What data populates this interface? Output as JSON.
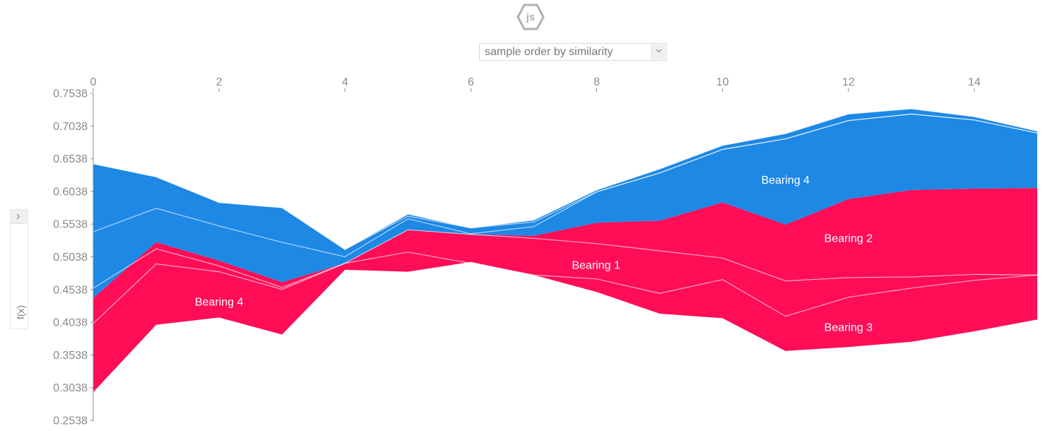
{
  "logo": {
    "text": "js"
  },
  "ordering": {
    "selected": "sample order by similarity"
  },
  "yaxis_selector": {
    "label": "f(x)"
  },
  "colors": {
    "negative": "#1e88e5",
    "positive": "#ff0d57",
    "line": "rgba(255,255,255,0.65)",
    "axis": "#8a8a8a"
  },
  "chart_data": {
    "type": "area",
    "title": "",
    "xlabel": "",
    "ylabel": "f(x)",
    "xlim": [
      0,
      15
    ],
    "ylim": [
      0.2538,
      0.7538
    ],
    "x_ticks": [
      0,
      2,
      4,
      6,
      8,
      10,
      12,
      14
    ],
    "y_ticks": [
      "0.2538",
      "0.3038",
      "0.3538",
      "0.4038",
      "0.4538",
      "0.5038",
      "0.5538",
      "0.6038",
      "0.6538",
      "0.7038",
      "0.7538"
    ],
    "x": [
      0,
      1,
      2,
      3,
      4,
      5,
      6,
      7,
      8,
      9,
      10,
      11,
      12,
      13,
      14,
      15
    ],
    "red_base": [
      0.297,
      0.4,
      0.411,
      0.385,
      0.484,
      0.481,
      0.496,
      0.476,
      0.45,
      0.417,
      0.41,
      0.36,
      0.366,
      0.374,
      0.39,
      0.408
    ],
    "red_boundaries": [
      [
        0.402,
        0.493,
        0.481,
        0.454,
        0.494,
        0.511,
        0.494,
        0.476,
        0.47,
        0.448,
        0.469,
        0.413,
        0.442,
        0.456,
        0.468,
        0.476
      ],
      [
        0.456,
        0.516,
        0.49,
        0.457,
        0.494,
        0.545,
        0.538,
        0.532,
        0.524,
        0.513,
        0.502,
        0.467,
        0.472,
        0.473,
        0.477,
        0.476
      ]
    ],
    "divider": [
      0.441,
      0.526,
      0.498,
      0.465,
      0.494,
      0.545,
      0.538,
      0.536,
      0.556,
      0.559,
      0.587,
      0.553,
      0.592,
      0.606,
      0.608,
      0.609
    ],
    "blue_boundaries": [
      [
        0.542,
        0.578,
        0.551,
        0.526,
        0.504,
        0.562,
        0.539,
        0.55,
        0.603,
        0.632,
        0.668,
        0.684,
        0.712,
        0.722,
        0.713,
        0.693
      ],
      [
        0.646,
        0.626,
        0.587,
        0.579,
        0.515,
        0.566,
        0.548,
        0.557,
        0.603,
        0.632,
        0.668,
        0.684,
        0.712,
        0.722,
        0.713,
        0.693
      ]
    ],
    "blue_top": [
      0.646,
      0.626,
      0.587,
      0.579,
      0.515,
      0.569,
      0.548,
      0.56,
      0.606,
      0.638,
      0.674,
      0.692,
      0.722,
      0.73,
      0.718,
      0.696
    ],
    "labels": [
      {
        "text": "Bearing 4",
        "x": 2.0,
        "y": 0.436
      },
      {
        "text": "Bearing 1",
        "x": 7.99,
        "y": 0.492
      },
      {
        "text": "Bearing 2",
        "x": 12.0,
        "y": 0.533
      },
      {
        "text": "Bearing 3",
        "x": 12.0,
        "y": 0.397
      },
      {
        "text": "Bearing 4",
        "x": 11.0,
        "y": 0.622
      }
    ]
  }
}
